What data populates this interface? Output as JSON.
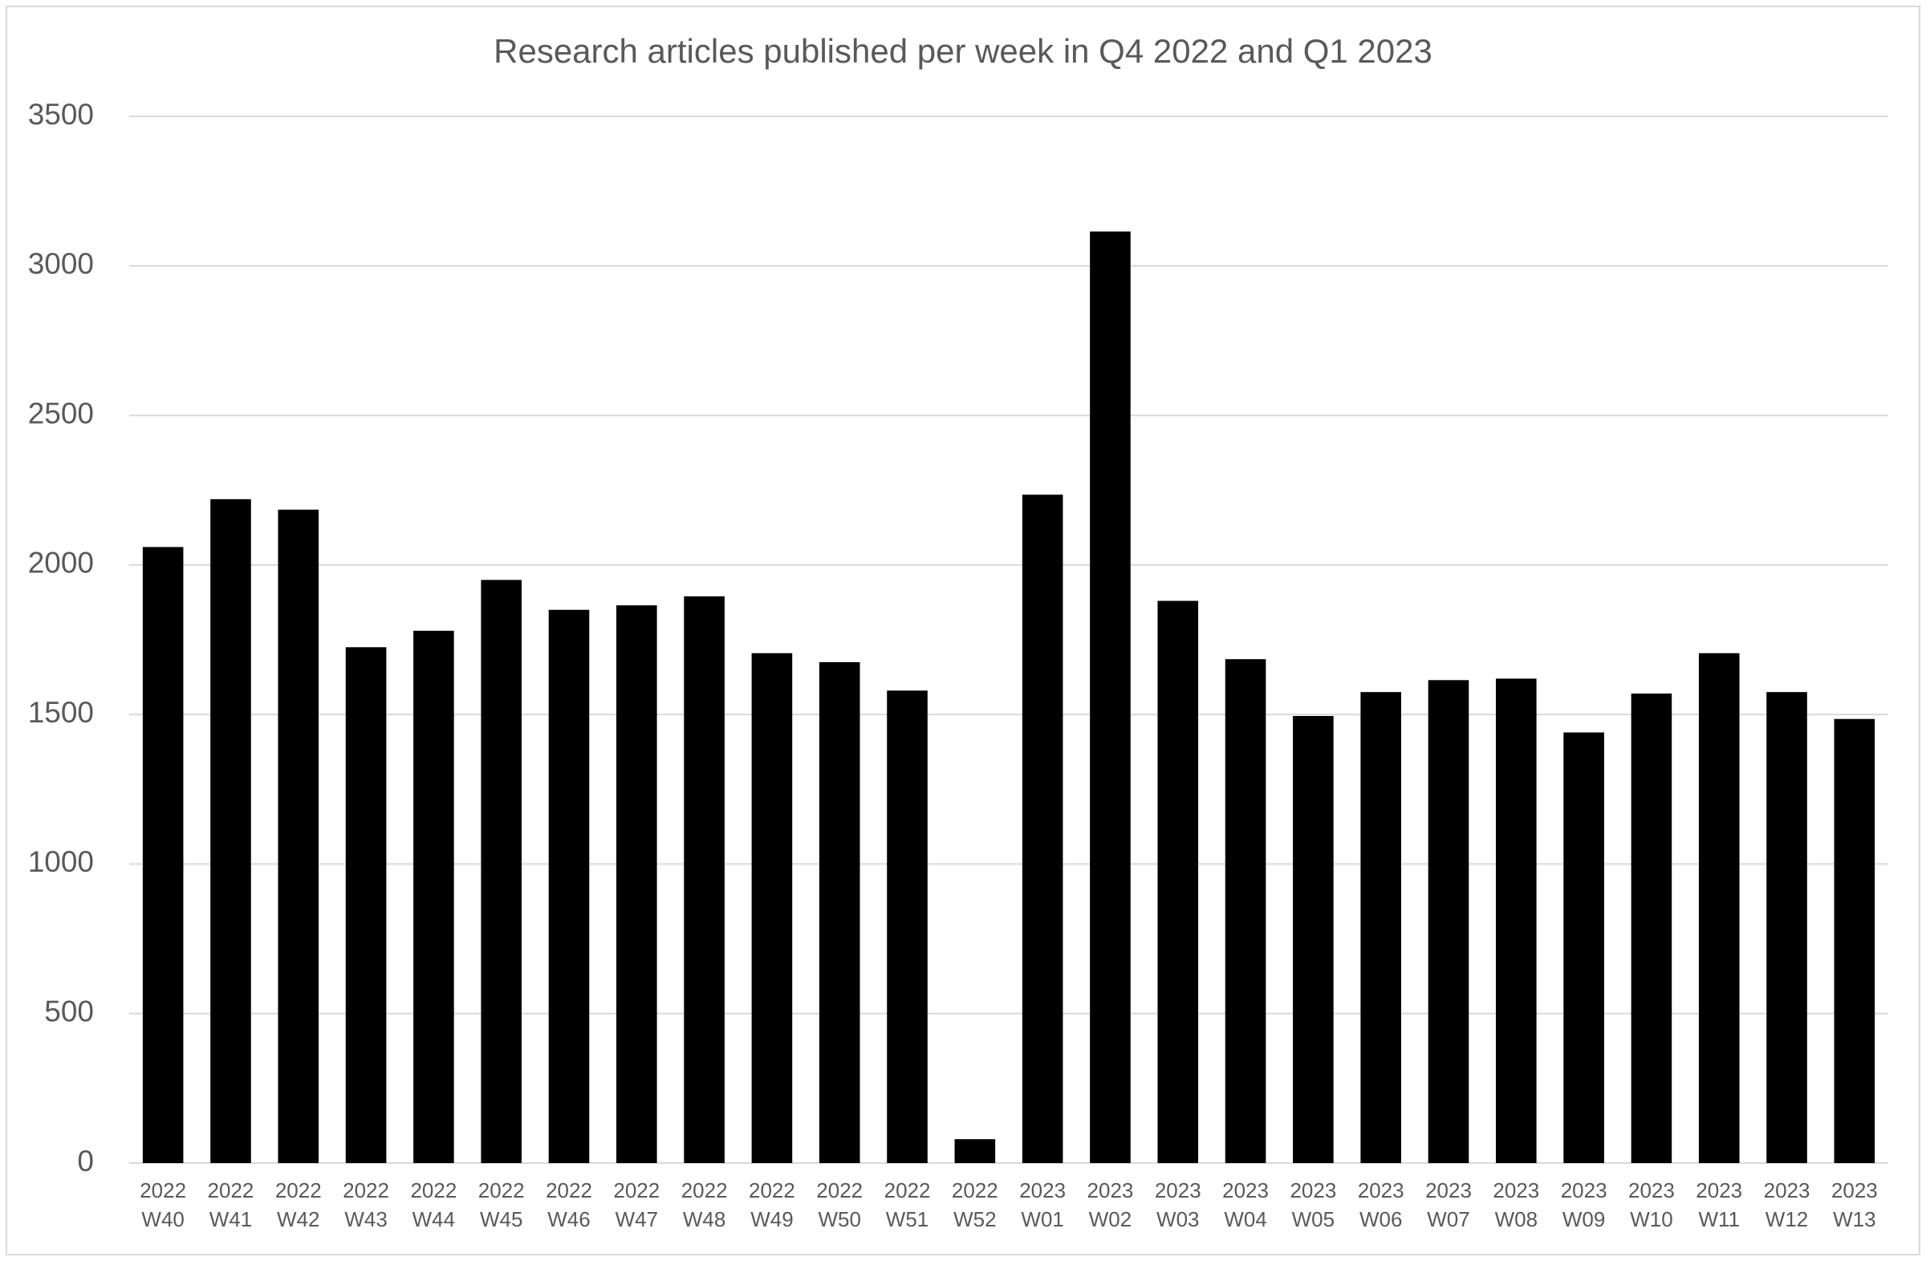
{
  "chart_data": {
    "type": "bar",
    "title": "Research articles published per week in Q4 2022 and Q1 2023",
    "categories": [
      "2022 W40",
      "2022 W41",
      "2022 W42",
      "2022 W43",
      "2022 W44",
      "2022 W45",
      "2022 W46",
      "2022 W47",
      "2022 W48",
      "2022 W49",
      "2022 W50",
      "2022 W51",
      "2022 W52",
      "2023 W01",
      "2023 W02",
      "2023 W03",
      "2023 W04",
      "2023 W05",
      "2023 W06",
      "2023 W07",
      "2023 W08",
      "2023 W09",
      "2023 W10",
      "2023 W11",
      "2023 W12",
      "2023 W13"
    ],
    "values": [
      2060,
      2220,
      2185,
      1725,
      1780,
      1950,
      1850,
      1865,
      1895,
      1705,
      1675,
      1580,
      80,
      2235,
      3115,
      1880,
      1685,
      1495,
      1575,
      1615,
      1620,
      1440,
      1570,
      1705,
      1575,
      1485
    ],
    "color": "#000000",
    "ylim": [
      0,
      3500
    ],
    "yticks": [
      0,
      500,
      1000,
      1500,
      2000,
      2500,
      3000,
      3500
    ],
    "grid": true
  }
}
